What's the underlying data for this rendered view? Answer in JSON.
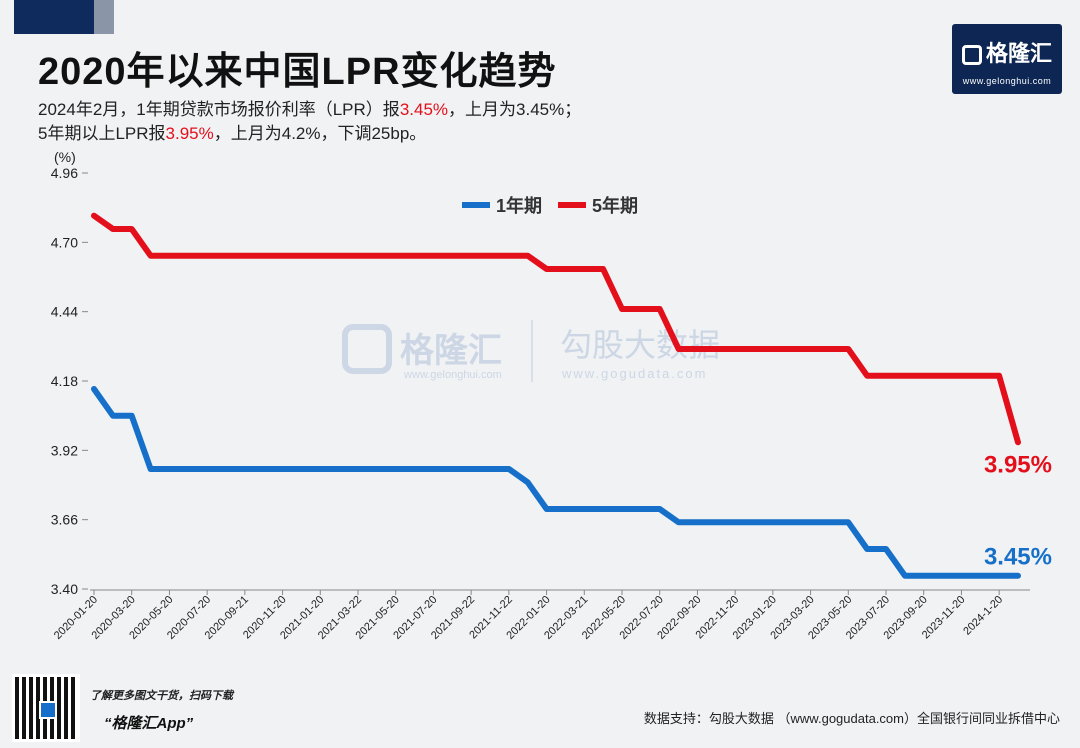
{
  "header": {
    "title": "2020年以来中国LPR变化趋势",
    "line1_a": "2024年2月，1年期贷款市场报价利率（LPR）报",
    "line1_hl": "3.45%",
    "line1_b": "，上月为3.45%；",
    "line2_a": "5年期以上LPR报",
    "line2_hl": "3.95%",
    "line2_b": "，上月为4.2%，下调25bp。"
  },
  "logo": {
    "brand": "格隆汇",
    "url": "www.gelonghui.com"
  },
  "watermark": {
    "left": "格隆汇",
    "left_url": "www.gelonghui.com",
    "right": "勾股大数据",
    "right_url": "www.gogudata.com"
  },
  "footer": {
    "promo_line": "了解更多图文干货，扫码下载",
    "app_name": "“格隆汇App”",
    "source": "数据支持：勾股大数据 （www.gogudata.com）全国银行间同业拆借中心"
  },
  "colors": {
    "one_year": "#1670c9",
    "five_year": "#e3101c"
  },
  "chart_data": {
    "type": "line",
    "ylabel": "(%)",
    "ylim": [
      3.4,
      4.96
    ],
    "yticks": [
      "4.96",
      "4.70",
      "4.44",
      "4.18",
      "3.92",
      "3.66",
      "3.40"
    ],
    "grid": false,
    "legend_placement": "top-center",
    "x_tick_labels": [
      "2020-01-20",
      "2020-03-20",
      "2020-05-20",
      "2020-07-20",
      "2020-09-21",
      "2020-11-20",
      "2021-01-20",
      "2021-03-22",
      "2021-05-20",
      "2021-07-20",
      "2021-09-22",
      "2021-11-22",
      "2022-01-20",
      "2022-03-21",
      "2022-05-20",
      "2022-07-20",
      "2022-09-20",
      "2022-11-20",
      "2023-01-20",
      "2023-03-20",
      "2023-05-20",
      "2023-07-20",
      "2023-09-20",
      "2023-11-20",
      "2024-1-20"
    ],
    "x": [
      "2020-01",
      "2020-02",
      "2020-03",
      "2020-04",
      "2020-05",
      "2020-06",
      "2020-07",
      "2020-08",
      "2020-09",
      "2020-10",
      "2020-11",
      "2020-12",
      "2021-01",
      "2021-02",
      "2021-03",
      "2021-04",
      "2021-05",
      "2021-06",
      "2021-07",
      "2021-08",
      "2021-09",
      "2021-10",
      "2021-11",
      "2021-12",
      "2022-01",
      "2022-02",
      "2022-03",
      "2022-04",
      "2022-05",
      "2022-06",
      "2022-07",
      "2022-08",
      "2022-09",
      "2022-10",
      "2022-11",
      "2022-12",
      "2023-01",
      "2023-02",
      "2023-03",
      "2023-04",
      "2023-05",
      "2023-06",
      "2023-07",
      "2023-08",
      "2023-09",
      "2023-10",
      "2023-11",
      "2023-12",
      "2024-01",
      "2024-02"
    ],
    "series": [
      {
        "name": "1年期",
        "values": [
          4.15,
          4.05,
          4.05,
          3.85,
          3.85,
          3.85,
          3.85,
          3.85,
          3.85,
          3.85,
          3.85,
          3.85,
          3.85,
          3.85,
          3.85,
          3.85,
          3.85,
          3.85,
          3.85,
          3.85,
          3.85,
          3.85,
          3.85,
          3.8,
          3.7,
          3.7,
          3.7,
          3.7,
          3.7,
          3.7,
          3.7,
          3.65,
          3.65,
          3.65,
          3.65,
          3.65,
          3.65,
          3.65,
          3.65,
          3.65,
          3.65,
          3.55,
          3.55,
          3.45,
          3.45,
          3.45,
          3.45,
          3.45,
          3.45,
          3.45
        ],
        "end_label": "3.45%"
      },
      {
        "name": "5年期",
        "values": [
          4.8,
          4.75,
          4.75,
          4.65,
          4.65,
          4.65,
          4.65,
          4.65,
          4.65,
          4.65,
          4.65,
          4.65,
          4.65,
          4.65,
          4.65,
          4.65,
          4.65,
          4.65,
          4.65,
          4.65,
          4.65,
          4.65,
          4.65,
          4.65,
          4.6,
          4.6,
          4.6,
          4.6,
          4.45,
          4.45,
          4.45,
          4.3,
          4.3,
          4.3,
          4.3,
          4.3,
          4.3,
          4.3,
          4.3,
          4.3,
          4.3,
          4.2,
          4.2,
          4.2,
          4.2,
          4.2,
          4.2,
          4.2,
          4.2,
          3.95
        ],
        "end_label": "3.95%"
      }
    ]
  }
}
